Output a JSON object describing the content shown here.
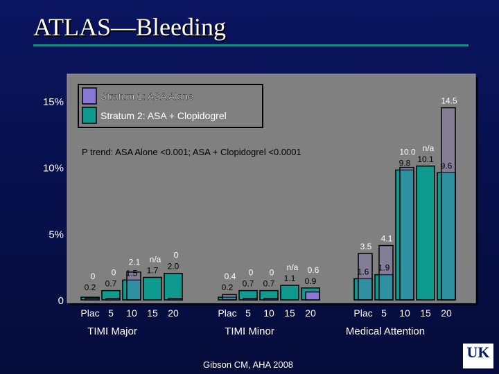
{
  "title": "ATLAS—Bleeding",
  "citation": "Gibson CM, AHA 2008",
  "logo_text": "UK",
  "colors": {
    "stratum1": "#8a78d8",
    "stratum2": "#0f9a90",
    "background": "#0b1560",
    "plot_bg": "#808080"
  },
  "chart_data": {
    "type": "bar",
    "ylim": [
      0,
      15
    ],
    "yticks": [
      {
        "value": 0,
        "label": "0"
      },
      {
        "value": 5,
        "label": "5%"
      },
      {
        "value": 10,
        "label": "10%"
      },
      {
        "value": 15,
        "label": "15%"
      }
    ],
    "legend": [
      {
        "name": "Stratum 1: ASA Alone",
        "color": "#8a78d8"
      },
      {
        "name": "Stratum 2: ASA + Clopidogrel",
        "color": "#0f9a90"
      }
    ],
    "annotation": "P trend: ASA Alone  <0.001; ASA + Clopidogrel <0.0001",
    "categories": [
      "Plac",
      "5",
      "10",
      "15",
      "20"
    ],
    "groups": [
      {
        "label": "TIMI Major",
        "bars": [
          {
            "s1": 0,
            "s2": 0.2,
            "s1_label": "0",
            "s2_label": "0.2"
          },
          {
            "s1": 0,
            "s2": 0.7,
            "s1_label": "0",
            "s2_label": "0.7"
          },
          {
            "s1": 2.1,
            "s2": 1.5,
            "s1_label": "2.1",
            "s2_label": "1.5"
          },
          {
            "s1": null,
            "s2": 1.7,
            "s1_label": "n/a",
            "s2_label": "1.7"
          },
          {
            "s1": 0,
            "s2": 2.0,
            "s1_label": "0",
            "s2_label": "2.0"
          }
        ]
      },
      {
        "label": "TIMI Minor",
        "bars": [
          {
            "s1": 0.4,
            "s2": 0.2,
            "s1_label": "0.4",
            "s2_label": "0.2"
          },
          {
            "s1": 0,
            "s2": 0.7,
            "s1_label": "0",
            "s2_label": "0.7"
          },
          {
            "s1": 0,
            "s2": 0.7,
            "s1_label": "0",
            "s2_label": "0.7"
          },
          {
            "s1": null,
            "s2": 1.1,
            "s1_label": "n/a",
            "s2_label": "1.1"
          },
          {
            "s1": 0.6,
            "s2": 0.9,
            "s1_label": "0.6",
            "s2_label": "0.9"
          }
        ]
      },
      {
        "label": "Medical Attention",
        "bars": [
          {
            "s1": 3.5,
            "s2": 1.6,
            "s1_label": "3.5",
            "s2_label": "1.6"
          },
          {
            "s1": 4.1,
            "s2": 1.9,
            "s1_label": "4.1",
            "s2_label": "1.9"
          },
          {
            "s1": 10.0,
            "s2": 9.8,
            "s1_label": "10.0",
            "s2_label": "9.8"
          },
          {
            "s1": null,
            "s2": 10.1,
            "s1_label": "n/a",
            "s2_label": "10.1"
          },
          {
            "s1": 14.5,
            "s2": 9.6,
            "s1_label": "14.5",
            "s2_label": "9.6"
          }
        ]
      }
    ]
  }
}
